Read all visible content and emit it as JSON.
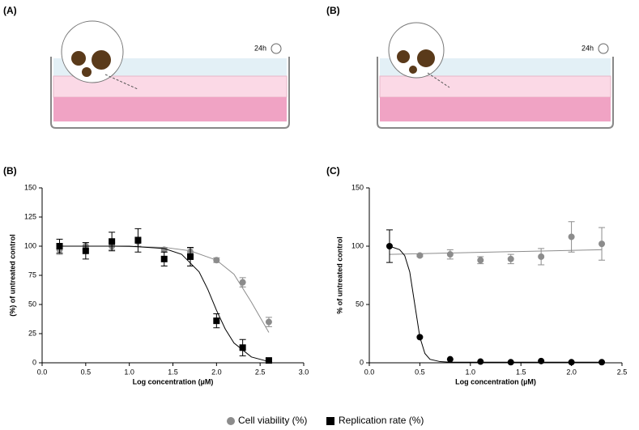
{
  "panels": {
    "labels": [
      "(A)",
      "(B)",
      "(B)",
      "(C)"
    ]
  },
  "diagrams": [
    {
      "time_label": "24h"
    },
    {
      "time_label": "24h"
    }
  ],
  "chart_data": [
    {
      "type": "scatter",
      "ylabel": "(%) of untreated control",
      "xlabel": "Log concentration (µM)",
      "xlim": [
        0,
        3
      ],
      "xticks": [
        {
          "value": 0,
          "label": "0.0"
        },
        {
          "value": 0.5,
          "label": "0.5"
        },
        {
          "value": 1,
          "label": "1.0"
        },
        {
          "value": 1.5,
          "label": "1.5"
        },
        {
          "value": 2,
          "label": "2.0"
        },
        {
          "value": 2.5,
          "label": "2.5"
        },
        {
          "value": 3,
          "label": "3.0"
        }
      ],
      "ylim": [
        0,
        150
      ],
      "yticks": [
        0,
        25,
        50,
        75,
        100,
        125,
        150
      ],
      "series": [
        {
          "name": "Cell viability (%)",
          "color": "#8c8c8c",
          "marker": "circle",
          "x": [
            0.2,
            0.5,
            0.8,
            1.1,
            1.4,
            1.7,
            2.0,
            2.3,
            2.6
          ],
          "values": [
            97,
            100,
            100,
            104,
            97,
            95,
            88,
            69,
            35
          ],
          "errors": [
            4,
            3,
            3,
            4,
            2,
            3,
            2,
            4,
            4
          ],
          "fit": {
            "x": [
              0.2,
              0.8,
              1.4,
              1.7,
              2.0,
              2.2,
              2.4,
              2.6
            ],
            "values": [
              100,
              100,
              99,
              96,
              88,
              76,
              52,
              26
            ]
          }
        },
        {
          "name": "Replication rate (%)",
          "color": "#000000",
          "marker": "square",
          "x": [
            0.2,
            0.5,
            0.8,
            1.1,
            1.4,
            1.7,
            2.0,
            2.3,
            2.6
          ],
          "values": [
            100,
            96,
            104,
            105,
            89,
            91,
            36,
            13,
            2
          ],
          "errors": [
            6,
            7,
            8,
            10,
            6,
            8,
            6,
            7,
            1
          ],
          "fit": {
            "x": [
              0.2,
              1.0,
              1.4,
              1.6,
              1.8,
              1.9,
              2.0,
              2.1,
              2.2,
              2.4,
              2.6
            ],
            "values": [
              100,
              100,
              98,
              93,
              78,
              63,
              45,
              29,
              17,
              5,
              1
            ]
          }
        }
      ]
    },
    {
      "type": "scatter",
      "ylabel": "% of untreated control",
      "xlabel": "Log concentration (µM)",
      "xlim": [
        0,
        2.5
      ],
      "xticks": [
        {
          "value": 0,
          "label": "0.0"
        },
        {
          "value": 0.5,
          "label": "0.5"
        },
        {
          "value": 1,
          "label": "1.0"
        },
        {
          "value": 1.5,
          "label": "1.5"
        },
        {
          "value": 2,
          "label": "2.0"
        },
        {
          "value": 2.5,
          "label": "2.5"
        }
      ],
      "ylim": [
        0,
        150
      ],
      "yticks": [
        0,
        50,
        100,
        150
      ],
      "series": [
        {
          "name": "Cell viability (%)",
          "color": "#8c8c8c",
          "marker": "circle",
          "x": [
            0.5,
            0.8,
            1.1,
            1.4,
            1.7,
            2.0,
            2.3
          ],
          "values": [
            92,
            93,
            88,
            89,
            91,
            108,
            102
          ],
          "errors": [
            1,
            4,
            3,
            4,
            7,
            13,
            14
          ],
          "fit": {
            "x": [
              0.2,
              2.3
            ],
            "values": [
              93,
              97
            ]
          }
        },
        {
          "name": "Replication rate (%)",
          "color": "#000000",
          "marker": "circle",
          "x": [
            0.2,
            0.5,
            0.8,
            1.1,
            1.4,
            1.7,
            2.0,
            2.3
          ],
          "values": [
            100,
            22,
            3,
            1,
            0.5,
            1.5,
            0.5,
            0.5
          ],
          "errors": [
            14,
            null,
            null,
            null,
            null,
            null,
            null,
            null
          ],
          "fit": {
            "x": [
              0.2,
              0.3,
              0.35,
              0.4,
              0.45,
              0.5,
              0.55,
              0.6,
              0.7,
              0.8,
              2.3
            ],
            "values": [
              100,
              97,
              92,
              78,
              50,
              22,
              8,
              3,
              1,
              0.5,
              0.5
            ]
          }
        }
      ]
    }
  ]
}
